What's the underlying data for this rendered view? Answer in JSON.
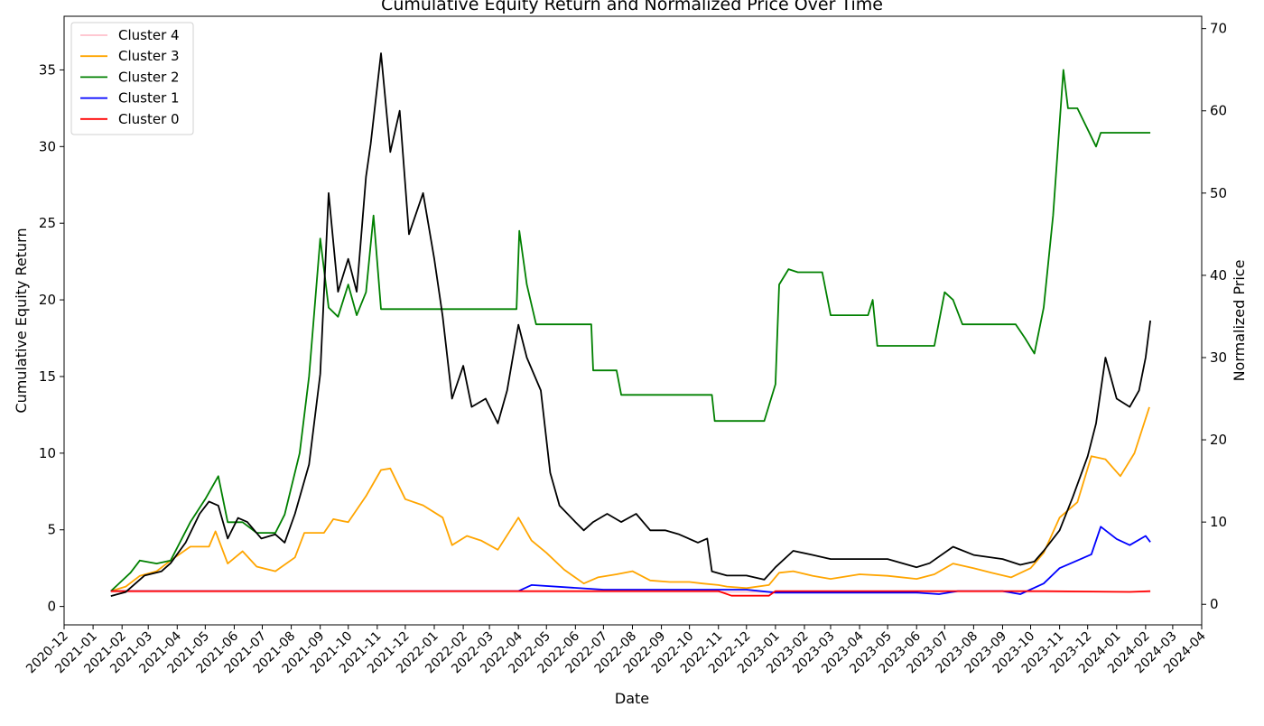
{
  "chart_data": {
    "type": "line",
    "title": "Cumulative Equity Return and Normalized Price Over Time",
    "xlabel": "Date",
    "ylabel": "Cumulative Equity Return",
    "y2label": "Normalized Price",
    "xlim": [
      "2020-12-01",
      "2024-04-01"
    ],
    "ylim": [
      -1.2,
      38.5
    ],
    "y2lim": [
      -2.5,
      71.5
    ],
    "yticks": [
      0,
      5,
      10,
      15,
      20,
      25,
      30,
      35
    ],
    "y2ticks": [
      0,
      10,
      20,
      30,
      40,
      50,
      60,
      70
    ],
    "xticks": [
      "2020-12",
      "2021-01",
      "2021-02",
      "2021-03",
      "2021-04",
      "2021-05",
      "2021-06",
      "2021-07",
      "2021-08",
      "2021-09",
      "2021-10",
      "2021-11",
      "2021-12",
      "2022-01",
      "2022-02",
      "2022-03",
      "2022-04",
      "2022-05",
      "2022-06",
      "2022-07",
      "2022-08",
      "2022-09",
      "2022-10",
      "2022-11",
      "2022-12",
      "2023-01",
      "2023-02",
      "2023-03",
      "2023-04",
      "2023-05",
      "2023-06",
      "2023-07",
      "2023-08",
      "2023-09",
      "2023-10",
      "2023-11",
      "2023-12",
      "2024-01",
      "2024-02",
      "2024-03",
      "2024-04"
    ],
    "legend_position": "top-left",
    "grid": false,
    "series": [
      {
        "name": "Cluster 4",
        "color": "#ffc0cb",
        "axis": "left",
        "x": [
          "2021-01-20",
          "2024-02-06"
        ],
        "y": [
          0.95,
          0.95
        ]
      },
      {
        "name": "Cluster 3",
        "color": "#ffa500",
        "axis": "left",
        "x": [
          "2021-01-20",
          "2021-02-05",
          "2021-02-20",
          "2021-03-10",
          "2021-03-25",
          "2021-04-15",
          "2021-05-05",
          "2021-05-12",
          "2021-05-25",
          "2021-06-10",
          "2021-06-25",
          "2021-07-15",
          "2021-08-05",
          "2021-08-15",
          "2021-09-05",
          "2021-09-15",
          "2021-10-01",
          "2021-10-20",
          "2021-11-05",
          "2021-11-15",
          "2021-12-01",
          "2021-12-20",
          "2022-01-10",
          "2022-01-20",
          "2022-02-05",
          "2022-02-20",
          "2022-03-10",
          "2022-04-01",
          "2022-04-15",
          "2022-05-01",
          "2022-05-20",
          "2022-06-10",
          "2022-06-25",
          "2022-07-15",
          "2022-08-01",
          "2022-08-20",
          "2022-09-10",
          "2022-10-01",
          "2022-10-15",
          "2022-11-01",
          "2022-11-10",
          "2022-12-01",
          "2022-12-25",
          "2023-01-05",
          "2023-01-20",
          "2023-02-10",
          "2023-03-01",
          "2023-04-01",
          "2023-05-01",
          "2023-06-01",
          "2023-06-20",
          "2023-07-10",
          "2023-08-01",
          "2023-08-20",
          "2023-09-10",
          "2023-10-01",
          "2023-10-15",
          "2023-11-01",
          "2023-11-20",
          "2023-12-05",
          "2023-12-20",
          "2024-01-05",
          "2024-01-20",
          "2024-02-05"
        ],
        "y": [
          1.0,
          1.3,
          2.0,
          2.3,
          3.0,
          3.9,
          3.9,
          4.9,
          2.8,
          3.6,
          2.6,
          2.3,
          3.2,
          4.8,
          4.8,
          5.7,
          5.5,
          7.2,
          8.9,
          9.0,
          7.0,
          6.6,
          5.8,
          4.0,
          4.6,
          4.3,
          3.7,
          5.8,
          4.3,
          3.5,
          2.4,
          1.5,
          1.9,
          2.1,
          2.3,
          1.7,
          1.6,
          1.6,
          1.5,
          1.4,
          1.3,
          1.2,
          1.4,
          2.2,
          2.3,
          2.0,
          1.8,
          2.1,
          2.0,
          1.8,
          2.1,
          2.8,
          2.5,
          2.2,
          1.9,
          2.5,
          3.5,
          5.8,
          6.8,
          9.8,
          9.6,
          8.5,
          10.0,
          13.0
        ]
      },
      {
        "name": "Cluster 2",
        "color": "#008000",
        "axis": "left",
        "x": [
          "2021-01-20",
          "2021-02-10",
          "2021-02-20",
          "2021-03-10",
          "2021-03-25",
          "2021-04-15",
          "2021-05-01",
          "2021-05-15",
          "2021-05-25",
          "2021-06-10",
          "2021-06-25",
          "2021-07-15",
          "2021-07-25",
          "2021-08-10",
          "2021-08-20",
          "2021-09-01",
          "2021-09-10",
          "2021-09-20",
          "2021-10-01",
          "2021-10-10",
          "2021-10-20",
          "2021-10-28",
          "2021-11-05",
          "2022-03-30",
          "2022-04-02",
          "2022-04-10",
          "2022-04-20",
          "2022-06-18",
          "2022-06-20",
          "2022-07-15",
          "2022-07-20",
          "2022-10-25",
          "2022-10-28",
          "2022-12-20",
          "2023-01-01",
          "2023-01-05",
          "2023-01-15",
          "2023-01-25",
          "2023-02-20",
          "2023-03-01",
          "2023-04-10",
          "2023-04-15",
          "2023-04-20",
          "2023-06-20",
          "2023-07-01",
          "2023-07-10",
          "2023-07-20",
          "2023-09-15",
          "2023-09-25",
          "2023-10-05",
          "2023-10-15",
          "2023-10-25",
          "2023-11-05",
          "2023-11-10",
          "2023-11-20",
          "2023-12-10",
          "2023-12-15",
          "2024-02-06"
        ],
        "y": [
          1.0,
          2.2,
          3.0,
          2.8,
          3.0,
          5.5,
          7.0,
          8.5,
          5.5,
          5.5,
          4.8,
          4.8,
          6.0,
          10.0,
          15.0,
          24.0,
          19.5,
          18.9,
          21.0,
          19.0,
          20.5,
          25.5,
          19.4,
          19.4,
          24.5,
          21.0,
          18.4,
          18.4,
          15.4,
          15.4,
          13.8,
          13.8,
          12.1,
          12.1,
          14.5,
          21.0,
          22.0,
          21.8,
          21.8,
          19.0,
          19.0,
          20.0,
          17.0,
          17.0,
          20.5,
          20.0,
          18.4,
          18.4,
          17.5,
          16.5,
          19.5,
          25.5,
          35.0,
          32.5,
          32.5,
          30.0,
          30.9,
          30.9
        ]
      },
      {
        "name": "Cluster 1",
        "color": "#0000ff",
        "axis": "left",
        "x": [
          "2021-01-20",
          "2022-04-01",
          "2022-04-15",
          "2022-07-01",
          "2022-10-15",
          "2022-12-01",
          "2023-01-01",
          "2023-06-01",
          "2023-06-25",
          "2023-07-15",
          "2023-09-01",
          "2023-09-20",
          "2023-10-15",
          "2023-11-01",
          "2023-11-20",
          "2023-12-05",
          "2023-12-15",
          "2024-01-01",
          "2024-01-15",
          "2024-02-01",
          "2024-02-06"
        ],
        "y": [
          1.0,
          1.0,
          1.4,
          1.1,
          1.1,
          1.1,
          0.9,
          0.9,
          0.8,
          1.0,
          1.0,
          0.8,
          1.5,
          2.5,
          3.0,
          3.4,
          5.2,
          4.4,
          4.0,
          4.6,
          4.2
        ]
      },
      {
        "name": "Cluster 0",
        "color": "#ff0000",
        "axis": "left",
        "x": [
          "2021-01-20",
          "2022-11-01",
          "2022-11-15",
          "2022-12-25",
          "2023-01-01",
          "2023-10-15",
          "2024-01-15",
          "2024-02-06"
        ],
        "y": [
          1.0,
          1.0,
          0.7,
          0.7,
          1.0,
          1.0,
          0.95,
          1.0
        ]
      },
      {
        "name": "",
        "color": "#000000",
        "axis": "right",
        "x": [
          "2021-01-20",
          "2021-02-05",
          "2021-02-25",
          "2021-03-15",
          "2021-03-25",
          "2021-04-10",
          "2021-04-25",
          "2021-05-05",
          "2021-05-15",
          "2021-05-25",
          "2021-06-05",
          "2021-06-15",
          "2021-06-30",
          "2021-07-15",
          "2021-07-25",
          "2021-08-05",
          "2021-08-20",
          "2021-09-01",
          "2021-09-10",
          "2021-09-20",
          "2021-10-01",
          "2021-10-10",
          "2021-10-20",
          "2021-10-25",
          "2021-11-05",
          "2021-11-15",
          "2021-11-25",
          "2021-12-05",
          "2021-12-20",
          "2022-01-01",
          "2022-01-10",
          "2022-01-20",
          "2022-02-01",
          "2022-02-10",
          "2022-02-25",
          "2022-03-10",
          "2022-03-20",
          "2022-04-01",
          "2022-04-10",
          "2022-04-25",
          "2022-05-05",
          "2022-05-15",
          "2022-06-01",
          "2022-06-10",
          "2022-06-20",
          "2022-07-05",
          "2022-07-20",
          "2022-08-05",
          "2022-08-20",
          "2022-09-05",
          "2022-09-20",
          "2022-10-10",
          "2022-10-20",
          "2022-10-25",
          "2022-11-10",
          "2022-12-01",
          "2022-12-20",
          "2023-01-01",
          "2023-01-20",
          "2023-02-10",
          "2023-03-01",
          "2023-04-01",
          "2023-05-01",
          "2023-06-01",
          "2023-06-15",
          "2023-07-10",
          "2023-08-01",
          "2023-09-01",
          "2023-09-20",
          "2023-10-05",
          "2023-10-15",
          "2023-11-01",
          "2023-11-15",
          "2023-12-01",
          "2023-12-10",
          "2023-12-20",
          "2024-01-01",
          "2024-01-15",
          "2024-01-25",
          "2024-02-01",
          "2024-02-06"
        ],
        "y": [
          1.0,
          1.5,
          3.5,
          4.0,
          5.0,
          7.5,
          11.0,
          12.5,
          12.0,
          8.0,
          10.5,
          10.0,
          8.0,
          8.5,
          7.5,
          11.0,
          17.0,
          28.0,
          50.0,
          38.0,
          42.0,
          38.0,
          52.0,
          56.0,
          67.0,
          55.0,
          60.0,
          45.0,
          50.0,
          42.0,
          35.0,
          25.0,
          29.0,
          24.0,
          25.0,
          22.0,
          26.0,
          34.0,
          30.0,
          26.0,
          16.0,
          12.0,
          10.0,
          9.0,
          10.0,
          11.0,
          10.0,
          11.0,
          9.0,
          9.0,
          8.5,
          7.5,
          8.0,
          4.0,
          3.5,
          3.5,
          3.0,
          4.5,
          6.5,
          6.0,
          5.5,
          5.5,
          5.5,
          4.5,
          5.0,
          7.0,
          6.0,
          5.5,
          4.8,
          5.2,
          6.5,
          9.0,
          13.0,
          18.0,
          22.0,
          30.0,
          25.0,
          24.0,
          26.0,
          30.0,
          34.5
        ]
      }
    ]
  }
}
